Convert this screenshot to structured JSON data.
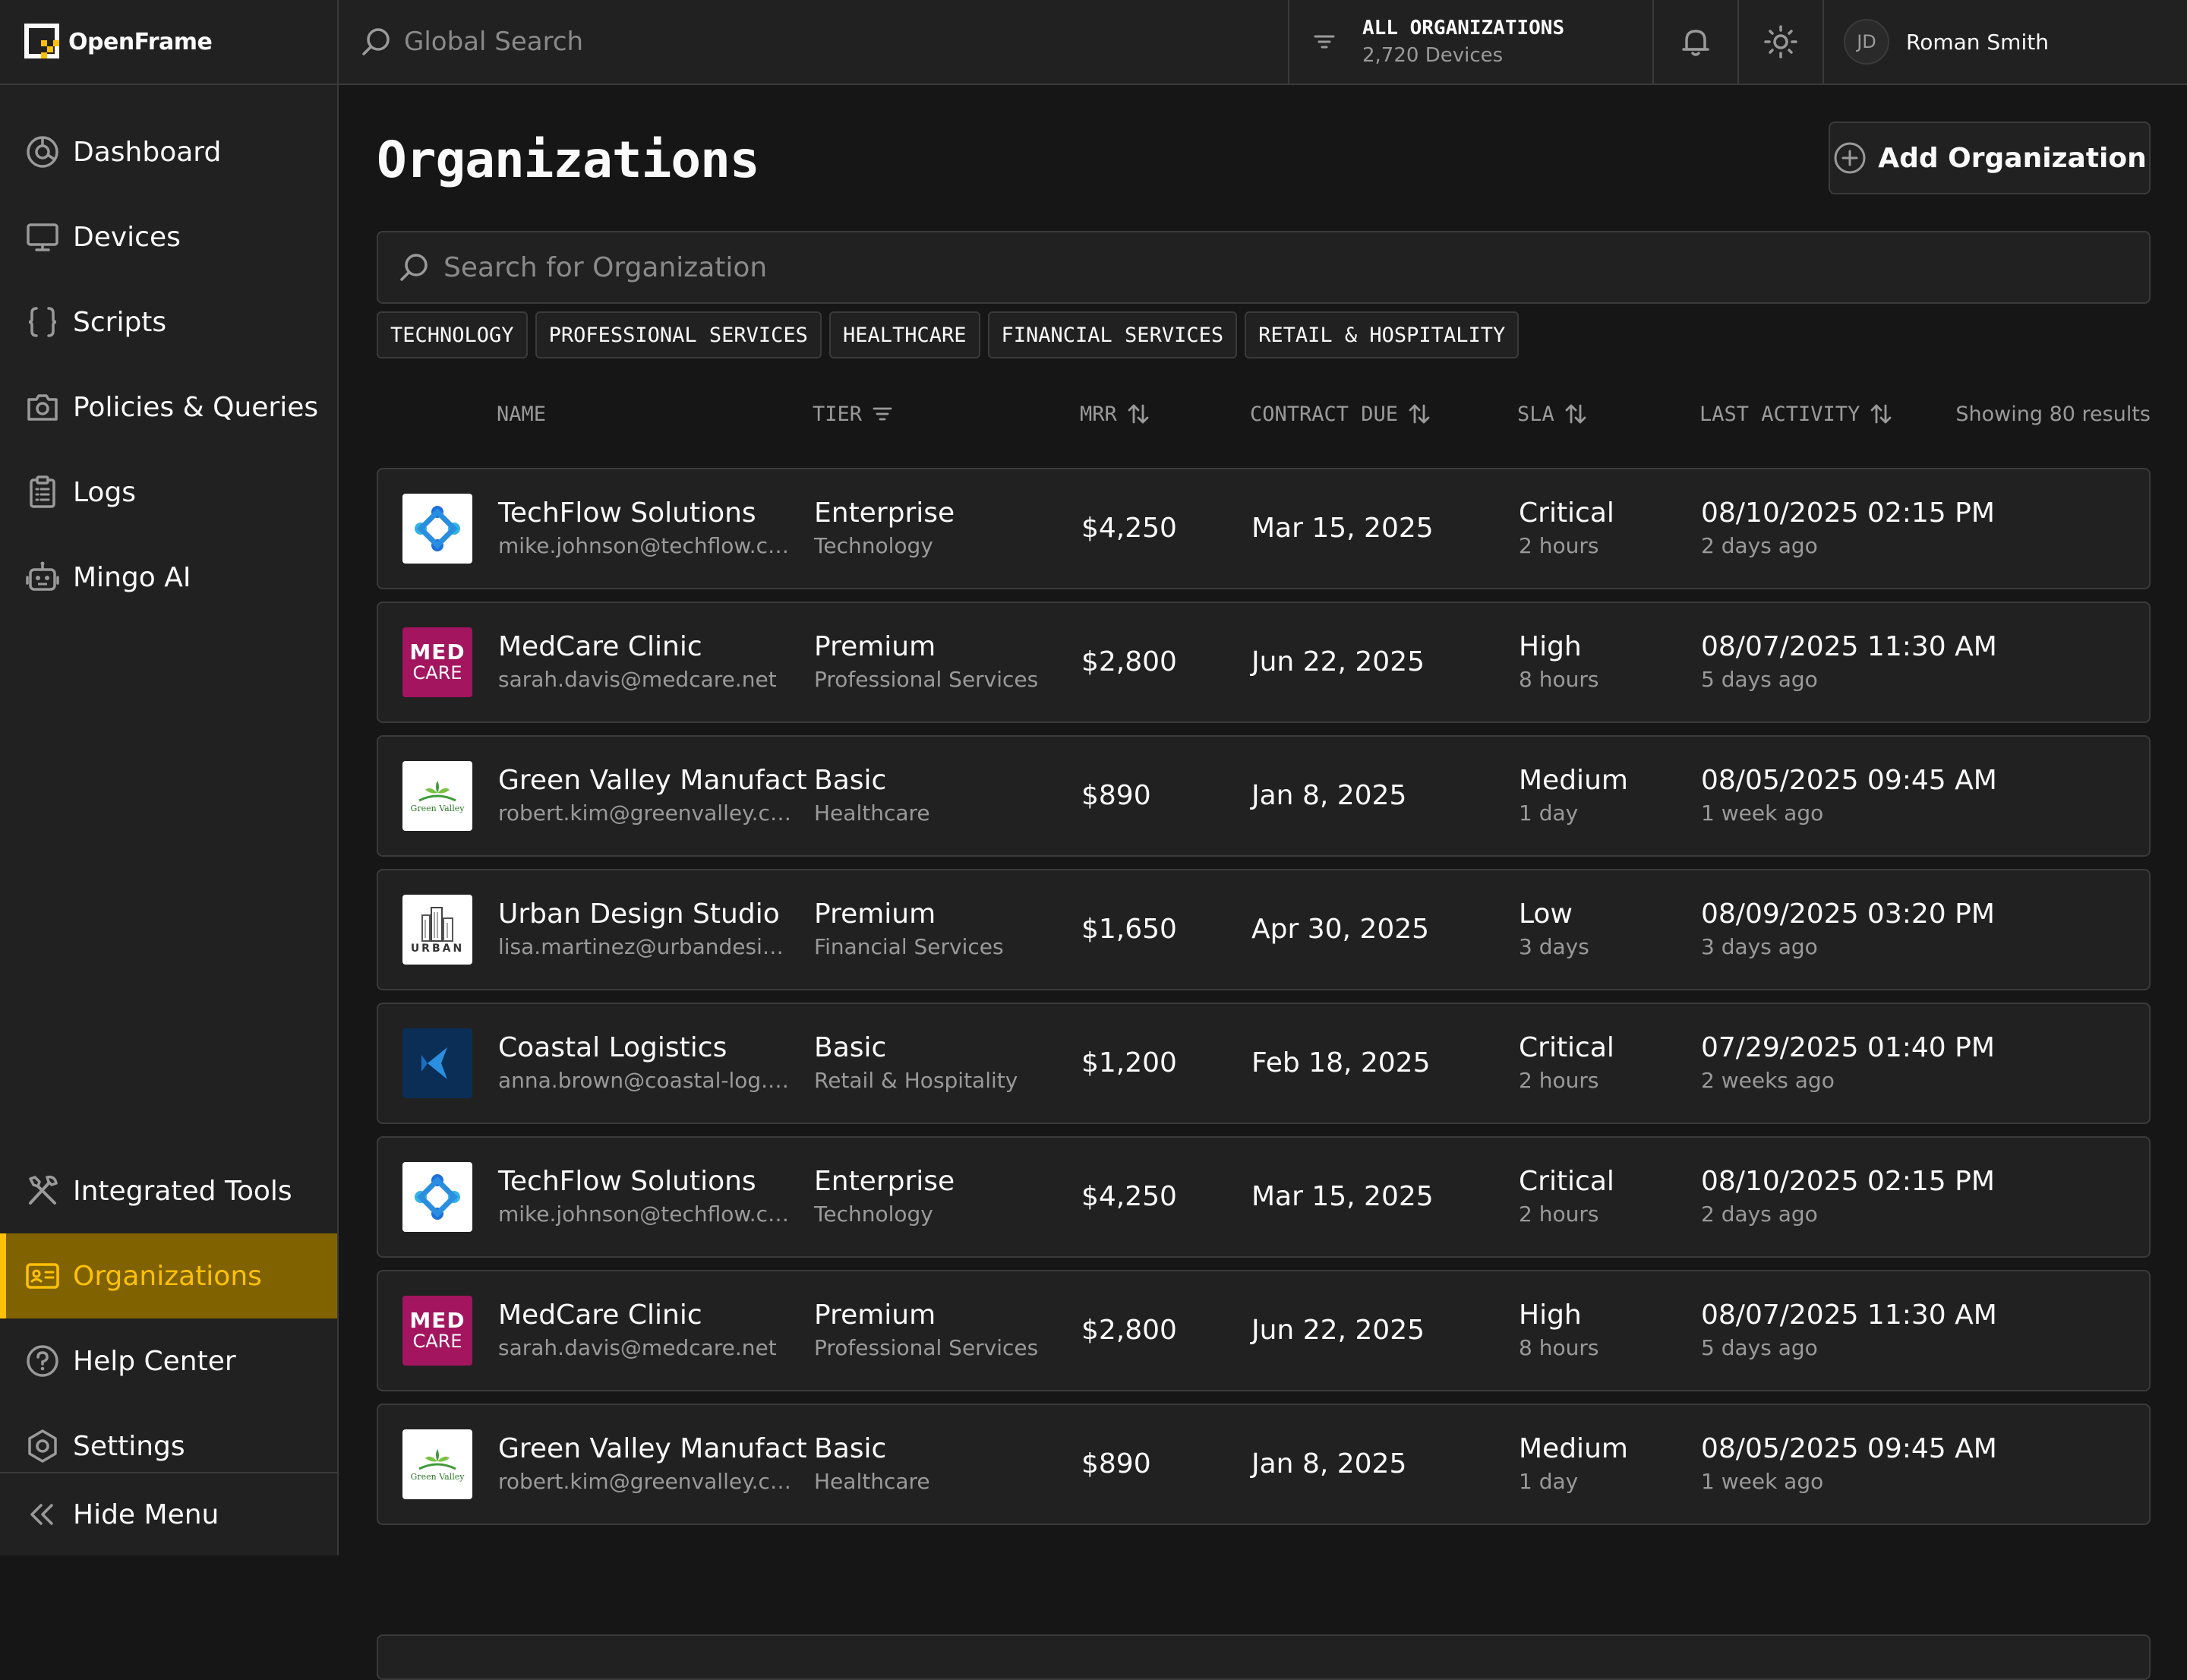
{
  "app": {
    "name": "OpenFrame"
  },
  "header": {
    "search_placeholder": "Global Search",
    "org_filter": {
      "title": "ALL ORGANIZATIONS",
      "subtitle": "2,720 Devices"
    },
    "user": {
      "initials": "JD",
      "name": "Roman Smith"
    }
  },
  "sidebar": {
    "items": [
      {
        "label": "Dashboard",
        "icon": "dashboard-icon"
      },
      {
        "label": "Devices",
        "icon": "monitor-icon"
      },
      {
        "label": "Scripts",
        "icon": "braces-icon"
      },
      {
        "label": "Policies & Queries",
        "icon": "camera-icon"
      },
      {
        "label": "Logs",
        "icon": "clipboard-icon"
      },
      {
        "label": "Mingo AI",
        "icon": "robot-icon"
      }
    ],
    "bottom_items": [
      {
        "label": "Integrated Tools",
        "icon": "tools-icon"
      },
      {
        "label": "Organizations",
        "icon": "id-card-icon",
        "active": true
      },
      {
        "label": "Help Center",
        "icon": "help-icon"
      },
      {
        "label": "Settings",
        "icon": "gear-icon"
      }
    ],
    "hide_menu": "Hide Menu",
    "active_color": "#ffc008"
  },
  "main": {
    "title": "Organizations",
    "add_button": "Add Organization",
    "search_placeholder": "Search for Organization",
    "tags": [
      "TECHNOLOGY",
      "PROFESSIONAL SERVICES",
      "HEALTHCARE",
      "FINANCIAL SERVICES",
      "RETAIL & HOSPITALITY"
    ],
    "columns": {
      "name": "NAME",
      "tier": "TIER",
      "mrr": "MRR",
      "contract_due": "CONTRACT DUE",
      "sla": "SLA",
      "last_activity": "LAST ACTIVITY"
    },
    "results_label": "Showing 80 results",
    "rows": [
      {
        "logo": "techflow",
        "name": "TechFlow Solutions",
        "email": "mike.johnson@techflow.com",
        "tier": "Enterprise",
        "industry": "Technology",
        "mrr": "$4,250",
        "contract_due": "Mar 15, 2025",
        "sla": "Critical",
        "sla_time": "2 hours",
        "last_activity": "08/10/2025 02:15 PM",
        "ago": "2 days ago"
      },
      {
        "logo": "medcare",
        "name": "MedCare Clinic",
        "email": "sarah.davis@medcare.net",
        "tier": "Premium",
        "industry": "Professional Services",
        "mrr": "$2,800",
        "contract_due": "Jun 22, 2025",
        "sla": "High",
        "sla_time": "8 hours",
        "last_activity": "08/07/2025 11:30 AM",
        "ago": "5 days ago"
      },
      {
        "logo": "greenvalley",
        "name": "Green Valley Manufact",
        "email": "robert.kim@greenvalley.com",
        "tier": "Basic",
        "industry": "Healthcare",
        "mrr": "$890",
        "contract_due": "Jan 8, 2025",
        "sla": "Medium",
        "sla_time": "1 day",
        "last_activity": "08/05/2025 09:45 AM",
        "ago": "1 week ago"
      },
      {
        "logo": "urban",
        "name": "Urban Design Studio",
        "email": "lisa.martinez@urbandesign....",
        "tier": "Premium",
        "industry": "Financial Services",
        "mrr": "$1,650",
        "contract_due": "Apr 30, 2025",
        "sla": "Low",
        "sla_time": "3 days",
        "last_activity": "08/09/2025 03:20 PM",
        "ago": "3 days ago"
      },
      {
        "logo": "coastal",
        "name": "Coastal Logistics",
        "email": "anna.brown@coastal-log.c...",
        "tier": "Basic",
        "industry": "Retail & Hospitality",
        "mrr": "$1,200",
        "contract_due": "Feb 18, 2025",
        "sla": "Critical",
        "sla_time": "2 hours",
        "last_activity": "07/29/2025 01:40 PM",
        "ago": "2 weeks ago"
      },
      {
        "logo": "techflow",
        "name": "TechFlow Solutions",
        "email": "mike.johnson@techflow.com",
        "tier": "Enterprise",
        "industry": "Technology",
        "mrr": "$4,250",
        "contract_due": "Mar 15, 2025",
        "sla": "Critical",
        "sla_time": "2 hours",
        "last_activity": "08/10/2025 02:15 PM",
        "ago": "2 days ago"
      },
      {
        "logo": "medcare",
        "name": "MedCare Clinic",
        "email": "sarah.davis@medcare.net",
        "tier": "Premium",
        "industry": "Professional Services",
        "mrr": "$2,800",
        "contract_due": "Jun 22, 2025",
        "sla": "High",
        "sla_time": "8 hours",
        "last_activity": "08/07/2025 11:30 AM",
        "ago": "5 days ago"
      },
      {
        "logo": "greenvalley",
        "name": "Green Valley Manufact",
        "email": "robert.kim@greenvalley.com",
        "tier": "Basic",
        "industry": "Healthcare",
        "mrr": "$890",
        "contract_due": "Jan 8, 2025",
        "sla": "Medium",
        "sla_time": "1 day",
        "last_activity": "08/05/2025 09:45 AM",
        "ago": "1 week ago"
      }
    ],
    "logo_text": {
      "medcare_top": "MED",
      "medcare_bottom": "CARE",
      "greenvalley": "Green Valley",
      "urban": "URBAN"
    }
  }
}
